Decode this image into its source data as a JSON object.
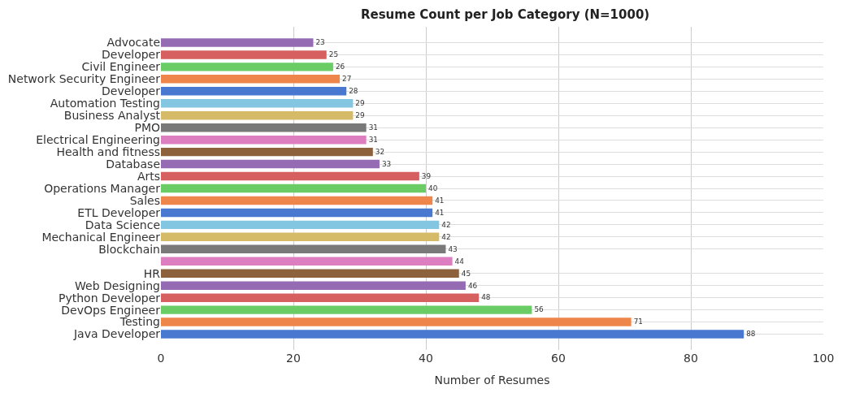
{
  "chart_data": {
    "type": "bar",
    "orientation": "horizontal",
    "title": "Resume Count per Job Category (N=1000)",
    "xlabel": "Number of Resumes",
    "categories": [
      "Advocate",
      "Developer",
      "Civil Engineer",
      "Network Security Engineer",
      "Developer",
      "Automation Testing",
      "Business Analyst",
      "PMO",
      "Electrical Engineering",
      "Health and fitness",
      "Database",
      "Arts",
      "Operations Manager",
      "Sales",
      "ETL Developer",
      "Data Science",
      "Mechanical Engineer",
      "Blockchain",
      null,
      "HR",
      "Web Designing",
      "Python Developer",
      "DevOps Engineer",
      "Testing",
      "Java Developer"
    ],
    "values": [
      23,
      25,
      26,
      27,
      28,
      29,
      29,
      31,
      31,
      32,
      33,
      39,
      40,
      41,
      41,
      42,
      42,
      43,
      44,
      45,
      46,
      48,
      56,
      71,
      88
    ],
    "colors": [
      "#956cb4",
      "#d65f5f",
      "#6acc64",
      "#ee854a",
      "#4878d0",
      "#82c6e2",
      "#d5bb67",
      "#797979",
      "#dc7ec0",
      "#8c613c",
      "#956cb4",
      "#d65f5f",
      "#6acc64",
      "#ee854a",
      "#4878d0",
      "#82c6e2",
      "#d5bb67",
      "#797979",
      "#dc7ec0",
      "#8c613c",
      "#956cb4",
      "#d65f5f",
      "#6acc64",
      "#ee854a",
      "#4878d0"
    ],
    "xlim": [
      0,
      100
    ],
    "xticks": [
      0,
      20,
      40,
      60,
      80,
      100
    ],
    "grid": true,
    "data_labels": true
  }
}
